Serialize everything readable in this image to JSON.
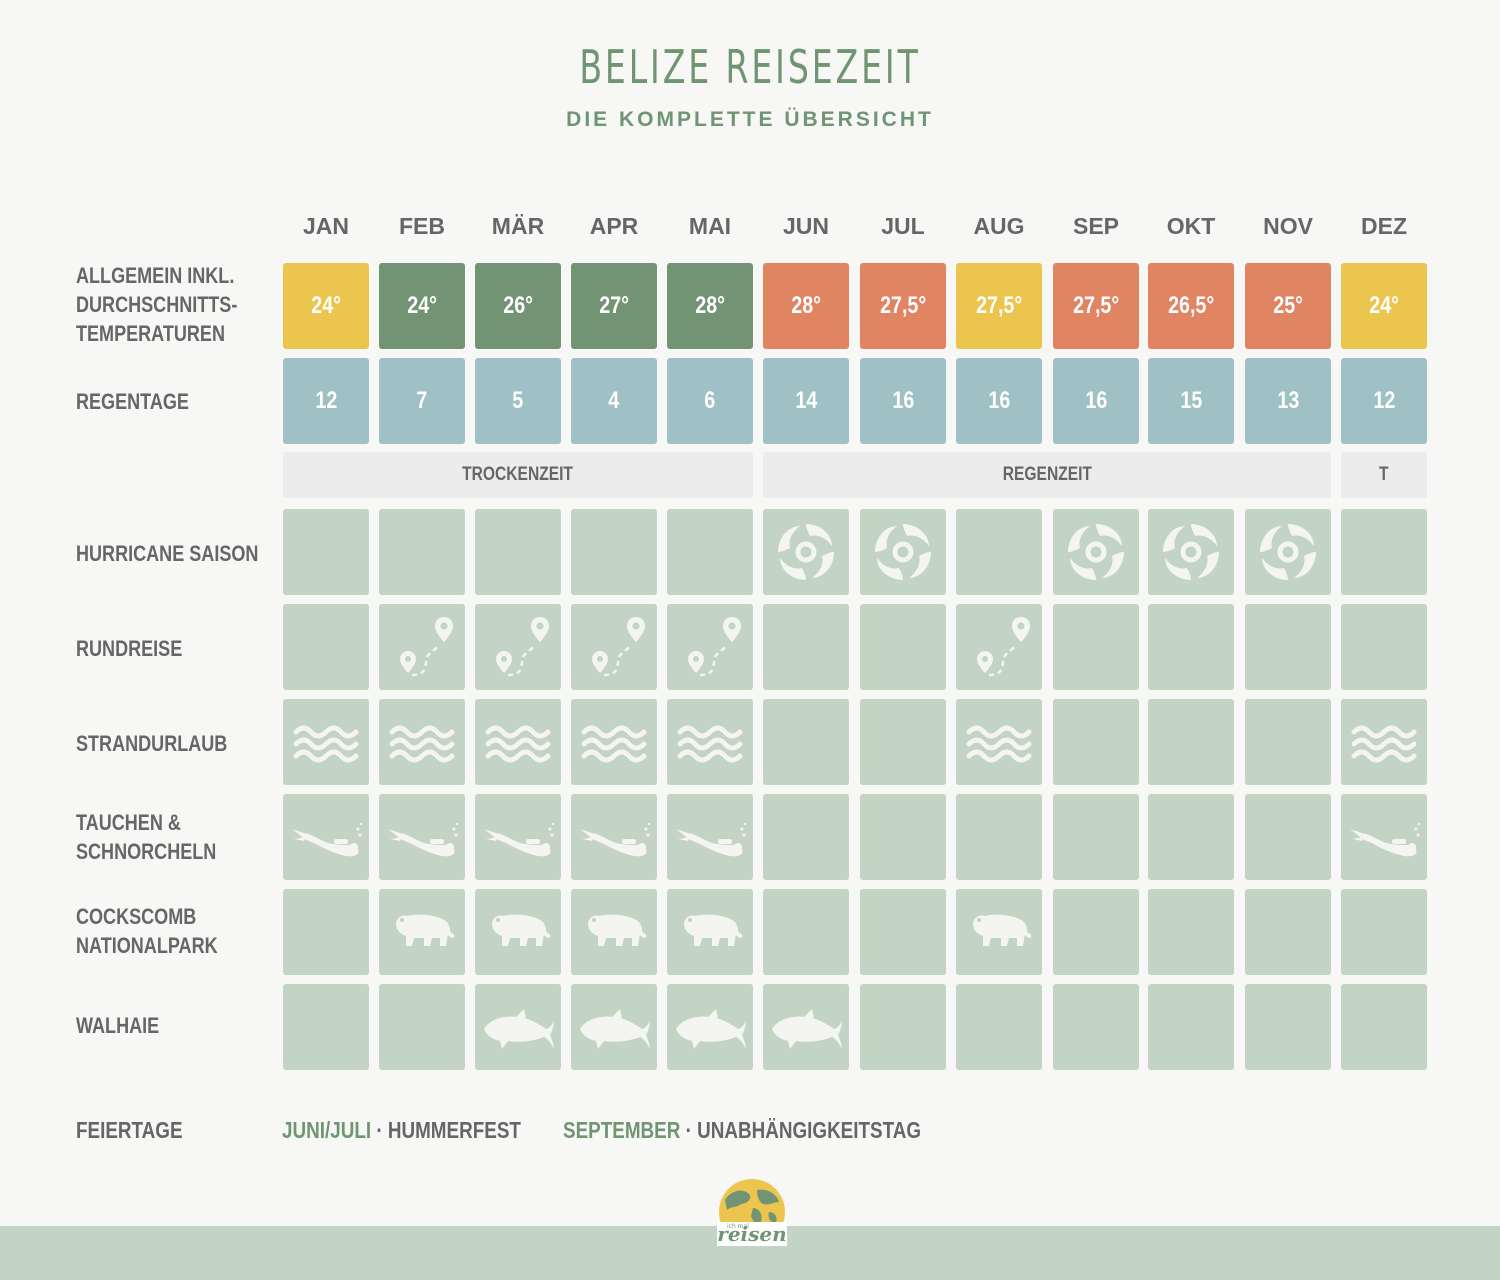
{
  "header": {
    "title": "BELIZE REISEZEIT",
    "subtitle": "DIE KOMPLETTE ÜBERSICHT"
  },
  "months": [
    "JAN",
    "FEB",
    "MÄR",
    "APR",
    "MAI",
    "JUN",
    "JUL",
    "AUG",
    "SEP",
    "OKT",
    "NOV",
    "DEZ"
  ],
  "rows": {
    "temperature": {
      "label_lines": [
        "ALLGEMEIN INKL.",
        "DURCHSCHNITTS-",
        "TEMPERATUREN"
      ],
      "values": [
        "24°",
        "24°",
        "26°",
        "27°",
        "28°",
        "28°",
        "27,5°",
        "27,5°",
        "27,5°",
        "26,5°",
        "25°",
        "24°"
      ],
      "colors": [
        "#ebc54e",
        "#729474",
        "#729474",
        "#729474",
        "#729474",
        "#e08462",
        "#e08462",
        "#ebc54e",
        "#e08462",
        "#e08462",
        "#e08462",
        "#ebc54e"
      ]
    },
    "rain_days": {
      "label": "REGENTAGE",
      "values": [
        "12",
        "7",
        "5",
        "4",
        "6",
        "14",
        "16",
        "16",
        "16",
        "15",
        "13",
        "12"
      ]
    },
    "seasons": [
      "TROCKENZEIT",
      "REGENZEIT",
      "T"
    ],
    "activities": [
      {
        "key": "hurricane",
        "label_lines": [
          "HURRICANE SAISON"
        ],
        "icon": "hurricane-icon",
        "flags": [
          0,
          0,
          0,
          0,
          0,
          1,
          1,
          0,
          1,
          1,
          1,
          0
        ]
      },
      {
        "key": "roundtrip",
        "label_lines": [
          "RUNDREISE"
        ],
        "icon": "route-pin-icon",
        "flags": [
          0,
          1,
          1,
          1,
          1,
          0,
          0,
          1,
          0,
          0,
          0,
          0
        ]
      },
      {
        "key": "beach",
        "label_lines": [
          "STRANDURLAUB"
        ],
        "icon": "waves-icon",
        "flags": [
          1,
          1,
          1,
          1,
          1,
          0,
          0,
          1,
          0,
          0,
          0,
          1
        ]
      },
      {
        "key": "diving",
        "label_lines": [
          "TAUCHEN &",
          "SCHNORCHELN"
        ],
        "icon": "diver-icon",
        "flags": [
          1,
          1,
          1,
          1,
          1,
          0,
          0,
          0,
          0,
          0,
          0,
          1
        ]
      },
      {
        "key": "cockscomb",
        "label_lines": [
          "COCKSCOMB",
          "NATIONALPARK"
        ],
        "icon": "jaguar-icon",
        "flags": [
          0,
          1,
          1,
          1,
          1,
          0,
          0,
          1,
          0,
          0,
          0,
          0
        ]
      },
      {
        "key": "whalesharks",
        "label_lines": [
          "WALHAIE"
        ],
        "icon": "whale-shark-icon",
        "flags": [
          0,
          0,
          1,
          1,
          1,
          1,
          0,
          0,
          0,
          0,
          0,
          0
        ]
      }
    ]
  },
  "holidays": {
    "label": "FEIERTAGE",
    "items": [
      {
        "when": "JUNI/JULI",
        "sep": " · ",
        "what": "HUMMERFEST"
      },
      {
        "when": "SEPTEMBER",
        "sep": " · ",
        "what": "UNABHÄNGIGKEITSTAG"
      }
    ]
  },
  "logo": {
    "text": "reisen",
    "small_text": "ich mal"
  }
}
